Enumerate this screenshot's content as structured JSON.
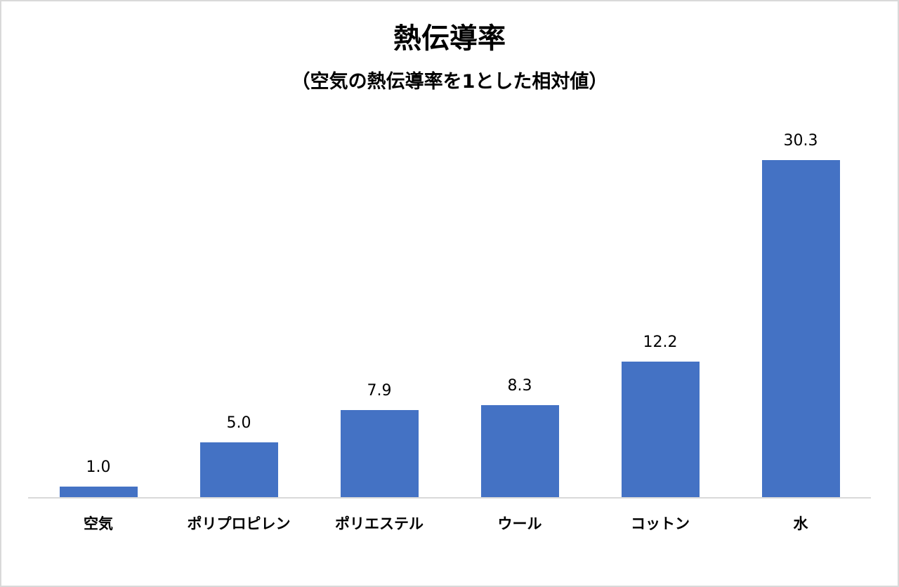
{
  "chart_data": {
    "type": "bar",
    "title": "熱伝導率",
    "subtitle": "（空気の熱伝導率を1とした相対値）",
    "categories": [
      "空気",
      "ポリプロピレン",
      "ポリエステル",
      "ウール",
      "コットン",
      "水"
    ],
    "values": [
      1.0,
      5.0,
      7.9,
      8.3,
      12.2,
      30.3
    ],
    "value_labels": [
      "1.0",
      "5.0",
      "7.9",
      "8.3",
      "12.2",
      "30.3"
    ],
    "xlabel": "",
    "ylabel": "",
    "ylim": [
      0,
      35
    ],
    "grid": false,
    "legend": "none",
    "bar_color": "#4472c4"
  }
}
